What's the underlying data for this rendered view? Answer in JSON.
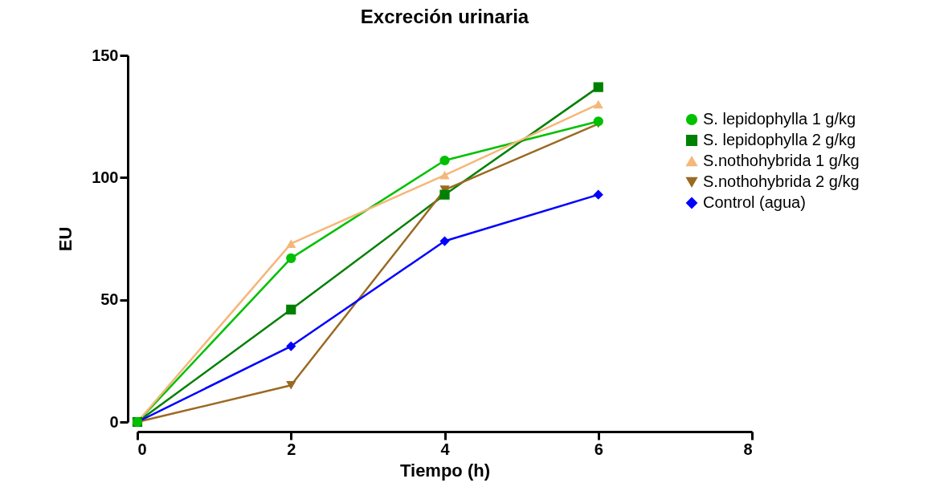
{
  "chart_data": {
    "type": "line",
    "title": "Excreción urinaria",
    "xlabel": "Tiempo (h)",
    "ylabel": "EU",
    "x": [
      0,
      2,
      4,
      6
    ],
    "series": [
      {
        "name": "S. lepidophylla 1 g/kg",
        "color": "#00c000",
        "marker": "circle",
        "values": [
          0,
          67,
          107,
          123
        ]
      },
      {
        "name": "S. lepidophylla 2 g/kg",
        "color": "#008000",
        "marker": "square",
        "values": [
          0,
          46,
          93,
          137
        ]
      },
      {
        "name": "S.nothohybrida 1 g/kg",
        "color": "#f5b77a",
        "marker": "triangle",
        "values": [
          0,
          73,
          101,
          130
        ]
      },
      {
        "name": "S.nothohybrida 2 g/kg",
        "color": "#9a6a22",
        "marker": "triangle-down",
        "values": [
          0,
          15,
          95,
          122
        ]
      },
      {
        "name": "Control (agua)",
        "color": "#0000ff",
        "marker": "diamond",
        "values": [
          0,
          31,
          74,
          93
        ]
      }
    ],
    "xlim": [
      0,
      8
    ],
    "xticks": [
      0,
      2,
      4,
      6,
      8
    ],
    "ylim": [
      0,
      150
    ],
    "yticks": [
      0,
      50,
      100,
      150
    ],
    "grid": false,
    "legend": "right",
    "line_style": "solid"
  }
}
